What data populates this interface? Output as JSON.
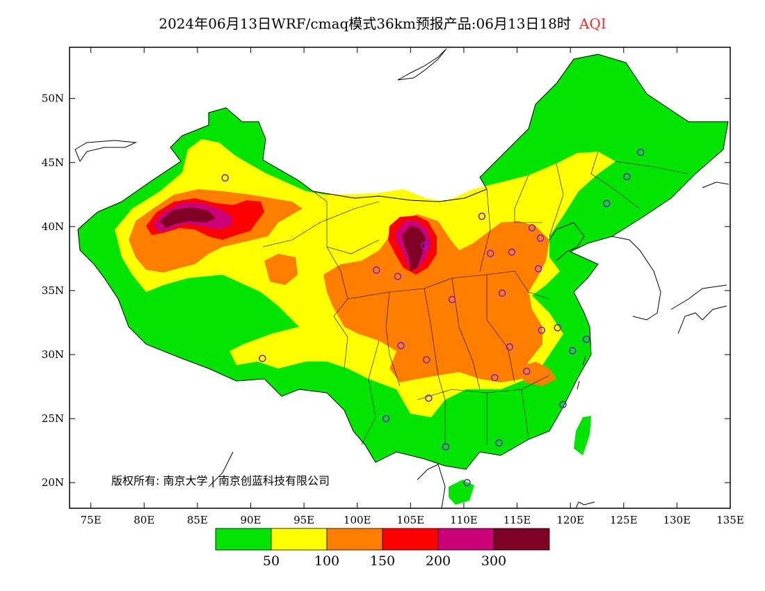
{
  "title": {
    "main": "2024年06月13日WRF/cmaq模式36km预报产品:06月13日18时",
    "variable": "AQI"
  },
  "axes": {
    "lon_ticks": [
      "75E",
      "80E",
      "85E",
      "90E",
      "95E",
      "100E",
      "105E",
      "110E",
      "115E",
      "120E",
      "125E",
      "130E",
      "135E"
    ],
    "lat_ticks": [
      "50N",
      "45N",
      "40N",
      "35N",
      "30N",
      "25N",
      "20N"
    ],
    "lon_range": [
      73,
      135
    ],
    "lat_range": [
      18,
      54
    ]
  },
  "colorbar": {
    "colors": [
      "#00e400",
      "#ffff00",
      "#ff7e00",
      "#ff0000",
      "#cc0077",
      "#7e0023"
    ],
    "labels": [
      "50",
      "100",
      "150",
      "200",
      "300"
    ]
  },
  "copyright": "版权所有: 南京大学 | 南京创蓝科技有限公司",
  "stations": [
    {
      "lon": 87.6,
      "lat": 43.8
    },
    {
      "lon": 91.1,
      "lat": 29.7
    },
    {
      "lon": 101.8,
      "lat": 36.6
    },
    {
      "lon": 103.8,
      "lat": 36.1
    },
    {
      "lon": 106.3,
      "lat": 38.5
    },
    {
      "lon": 111.7,
      "lat": 40.8
    },
    {
      "lon": 112.5,
      "lat": 37.9
    },
    {
      "lon": 114.5,
      "lat": 38.0
    },
    {
      "lon": 116.4,
      "lat": 39.9
    },
    {
      "lon": 117.2,
      "lat": 39.1
    },
    {
      "lon": 117.0,
      "lat": 36.7
    },
    {
      "lon": 113.6,
      "lat": 34.8
    },
    {
      "lon": 108.9,
      "lat": 34.3
    },
    {
      "lon": 104.1,
      "lat": 30.7
    },
    {
      "lon": 106.5,
      "lat": 29.6
    },
    {
      "lon": 106.7,
      "lat": 26.6
    },
    {
      "lon": 102.7,
      "lat": 25.0
    },
    {
      "lon": 108.3,
      "lat": 22.8
    },
    {
      "lon": 113.3,
      "lat": 23.1
    },
    {
      "lon": 110.3,
      "lat": 20.0
    },
    {
      "lon": 114.3,
      "lat": 30.6
    },
    {
      "lon": 112.9,
      "lat": 28.2
    },
    {
      "lon": 115.9,
      "lat": 28.7
    },
    {
      "lon": 117.3,
      "lat": 31.9
    },
    {
      "lon": 118.8,
      "lat": 32.1
    },
    {
      "lon": 120.2,
      "lat": 30.3
    },
    {
      "lon": 121.5,
      "lat": 31.2
    },
    {
      "lon": 119.3,
      "lat": 26.1
    },
    {
      "lon": 123.4,
      "lat": 41.8
    },
    {
      "lon": 125.3,
      "lat": 43.9
    },
    {
      "lon": 126.6,
      "lat": 45.8
    }
  ]
}
